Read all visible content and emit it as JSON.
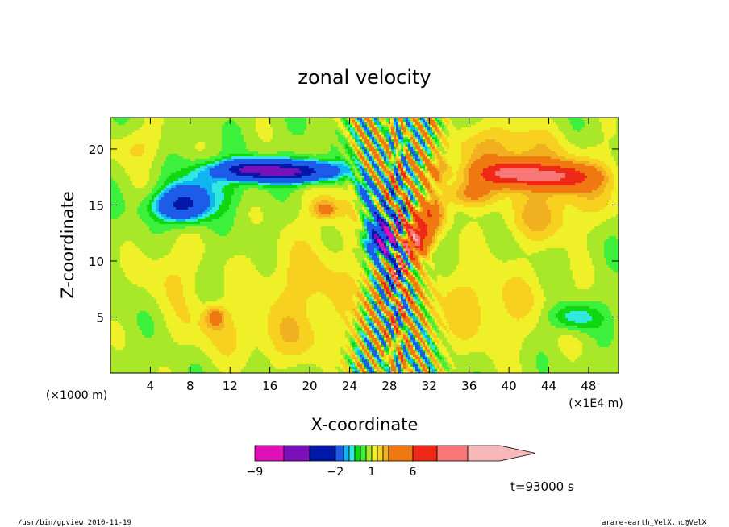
{
  "chart_data": {
    "type": "heatmap",
    "title": "zonal velocity",
    "xlabel": "X-coordinate",
    "ylabel": "Z-coordinate",
    "x_units_left": "(×1000 m)",
    "x_units_right": "(×1E4 m)",
    "x_ticks": [
      "4",
      "8",
      "12",
      "16",
      "20",
      "24",
      "28",
      "32",
      "36",
      "40",
      "44",
      "48"
    ],
    "y_ticks": [
      "5",
      "10",
      "15",
      "20"
    ],
    "xlim": [
      0,
      51
    ],
    "ylim": [
      0,
      22.8
    ],
    "time_label": "t=93000 s",
    "colorbar": {
      "tick_labels": [
        {
          "label": "−9",
          "value": -9
        },
        {
          "label": "−2",
          "value": -2
        },
        {
          "label": "1",
          "value": 1
        },
        {
          "label": "6",
          "value": 6
        }
      ],
      "levels": [
        -11,
        -9,
        -7,
        -5,
        -2,
        -1.5,
        -1,
        -0.5,
        0,
        0.5,
        1,
        1.5,
        2,
        4,
        6,
        8,
        10
      ],
      "colors": [
        "#e010b8",
        "#7a10b8",
        "#0018a8",
        "#1c5ce8",
        "#10b4f0",
        "#30e8e0",
        "#10d810",
        "#3cf03c",
        "#a8e828",
        "#f0f028",
        "#f8d020",
        "#f0b020",
        "#f07810",
        "#f02818",
        "#f87878",
        "#f8b8b8"
      ],
      "extend": "max"
    },
    "background_value": 0.2,
    "anomalies": [
      {
        "x": 2.5,
        "z": 20.2,
        "sx": 2.5,
        "sz": 1.8,
        "v": 0.9
      },
      {
        "x": 6,
        "z": 9,
        "sx": 3,
        "sz": 3,
        "v": 0.8
      },
      {
        "x": 10,
        "z": 4,
        "sx": 4,
        "sz": 2.8,
        "v": 0.7
      },
      {
        "x": 20,
        "z": 8,
        "sx": 6,
        "sz": 4,
        "v": 1
      },
      {
        "x": 18,
        "z": 3,
        "sx": 5,
        "sz": 2.5,
        "v": 0.85
      },
      {
        "x": 37,
        "z": 6,
        "sx": 8,
        "sz": 4,
        "v": 1
      },
      {
        "x": 39,
        "z": 20,
        "sx": 5,
        "sz": 2.5,
        "v": 1.4
      },
      {
        "x": 46,
        "z": 17,
        "sx": 6,
        "sz": 3,
        "v": 1.3
      },
      {
        "x": 43,
        "z": 13.5,
        "sx": 4,
        "sz": 2,
        "v": 1
      },
      {
        "x": 24,
        "z": 15,
        "sx": 5,
        "sz": 3,
        "v": 0.7
      },
      {
        "x": 40.5,
        "z": 17.8,
        "sx": 3.5,
        "sz": 1,
        "v": 6
      },
      {
        "x": 45.5,
        "z": 17.5,
        "sx": 3,
        "sz": 1,
        "v": 4
      },
      {
        "x": 36,
        "z": 16,
        "sx": 2.5,
        "sz": 1.2,
        "v": 2
      },
      {
        "x": 32.5,
        "z": 18,
        "sx": 1.5,
        "sz": 1.2,
        "v": 2
      },
      {
        "x": 30.5,
        "z": 12,
        "sx": 1.5,
        "sz": 1.5,
        "v": 6
      },
      {
        "x": 32,
        "z": 14,
        "sx": 1.5,
        "sz": 1.5,
        "v": 3
      },
      {
        "x": 18,
        "z": 18,
        "sx": 4.5,
        "sz": 0.9,
        "v": -8
      },
      {
        "x": 13.5,
        "z": 18.2,
        "sx": 2.5,
        "sz": 0.8,
        "v": -5
      },
      {
        "x": 9.5,
        "z": 17.8,
        "sx": 2,
        "sz": 1.2,
        "v": -1.5
      },
      {
        "x": 7.5,
        "z": 15.2,
        "sx": 2.2,
        "sz": 1.5,
        "v": -5
      },
      {
        "x": 6,
        "z": 14.8,
        "sx": 2.5,
        "sz": 1.2,
        "v": -1.5
      },
      {
        "x": 11,
        "z": 16,
        "sx": 3,
        "sz": 1.5,
        "v": -0.8
      },
      {
        "x": 27.5,
        "z": 12,
        "sx": 1.6,
        "sz": 1.8,
        "v": -8
      },
      {
        "x": 26.5,
        "z": 14.5,
        "sx": 1.2,
        "sz": 2,
        "v": -2
      },
      {
        "x": 25.5,
        "z": 16.3,
        "sx": 0.8,
        "sz": 1.2,
        "v": -3
      },
      {
        "x": 46.5,
        "z": 5,
        "sx": 2.5,
        "sz": 1.2,
        "v": -1.8
      },
      {
        "x": 21.5,
        "z": 14.6,
        "sx": 1.2,
        "sz": 0.8,
        "v": 1.8
      },
      {
        "x": 10.5,
        "z": 5,
        "sx": 1,
        "sz": 1,
        "v": 1.8
      },
      {
        "x": 26,
        "z": 1.5,
        "sx": 0.8,
        "sz": 1.5,
        "v": -0.5
      },
      {
        "x": 31,
        "z": 1.5,
        "sx": 0.8,
        "sz": 1.5,
        "v": -0.7
      }
    ],
    "wave_bands": [
      {
        "x0": 28.5,
        "slope": 0.25,
        "width": 2,
        "amp": 3,
        "kx": 4,
        "kz": 3
      },
      {
        "x0": 28.5,
        "slope": -0.25,
        "width": 2,
        "amp": 3,
        "kx": 4,
        "kz": 3
      },
      {
        "x0": 28.8,
        "slope": 0,
        "width": 1.2,
        "amp": 2.5,
        "kx": 6,
        "kz": 1.5
      }
    ]
  },
  "footer": {
    "left": "/usr/bin/gpview   2010-11-19",
    "right": "arare-earth_VelX.nc@VelX"
  }
}
